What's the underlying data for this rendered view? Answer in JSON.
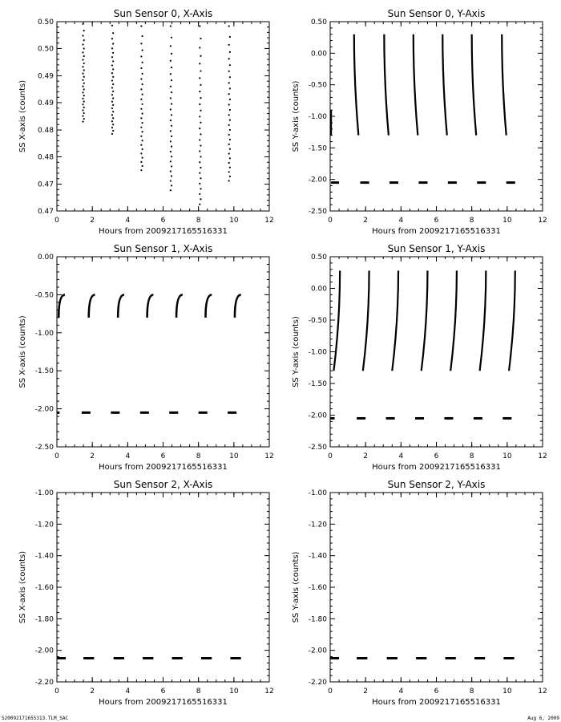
{
  "footer": {
    "left": "S20092171655313.TLM_SAC",
    "right": "Aug  6, 2009"
  },
  "colors": {
    "ink": "#000000",
    "background": "#ffffff"
  },
  "chart_data": [
    {
      "type": "scatter",
      "title": "Sun Sensor 0, X-Axis",
      "xlabel": "Hours from  2009217165516331",
      "ylabel": "SS X-axis (counts)",
      "xlim": [
        0,
        12
      ],
      "ylim": [
        0.4668,
        0.5007
      ],
      "xticks": [
        0,
        2,
        4,
        6,
        8,
        10,
        12
      ],
      "yticks": [
        0.4693,
        0.4741,
        0.4789,
        0.4837,
        0.4886,
        0.4934,
        0.4982
      ],
      "ytick_labels": [
        "0.47",
        "0.47",
        "0.48",
        "0.48",
        "0.49",
        "0.49",
        "0.50",
        "0.50"
      ],
      "ytick_values": [
        0.4668,
        0.4716,
        0.4765,
        0.4813,
        0.4862,
        0.491,
        0.4959,
        0.5007
      ],
      "series": [
        {
          "style": "dots",
          "segments": [
            {
              "x0": 1.5,
              "x1": 1.5,
              "y0": 0.5003,
              "y1": 0.4828
            },
            {
              "x0": 3.15,
              "x1": 3.15,
              "y0": 0.5,
              "y1": 0.4806
            },
            {
              "x0": 4.8,
              "x1": 4.8,
              "y0": 0.4999,
              "y1": 0.4741
            },
            {
              "x0": 6.45,
              "x1": 6.45,
              "y0": 0.4999,
              "y1": 0.4705
            },
            {
              "x0": 8.1,
              "x1": 8.1,
              "y0": 0.4999,
              "y1": 0.468
            },
            {
              "x0": 9.75,
              "x1": 9.75,
              "y0": 0.4999,
              "y1": 0.4722
            }
          ]
        }
      ]
    },
    {
      "type": "scatter",
      "title": "Sun Sensor 0, Y-Axis",
      "xlabel": "Hours from  2009217165516331",
      "ylabel": "SS Y-axis (counts)",
      "xlim": [
        0,
        12
      ],
      "ylim": [
        -2.5,
        0.5
      ],
      "xticks": [
        0,
        2,
        4,
        6,
        8,
        10,
        12
      ],
      "ytick_values": [
        -2.5,
        -2.0,
        -1.5,
        -1.0,
        -0.5,
        0.0,
        0.5
      ],
      "ytick_labels": [
        "-2.50",
        "-2.00",
        "-1.50",
        "-1.00",
        "-0.50",
        "0.00",
        "0.50"
      ],
      "series": [
        {
          "style": "curves",
          "segments": [
            {
              "x0": 0.05,
              "x1": 0.05,
              "y0": -0.9,
              "y1": -1.3
            },
            {
              "x0": 1.35,
              "x1": 1.6,
              "y0": 0.3,
              "y1": -1.3
            },
            {
              "x0": 3.05,
              "x1": 3.3,
              "y0": 0.3,
              "y1": -1.3
            },
            {
              "x0": 4.7,
              "x1": 4.95,
              "y0": 0.3,
              "y1": -1.3
            },
            {
              "x0": 6.35,
              "x1": 6.6,
              "y0": 0.3,
              "y1": -1.3
            },
            {
              "x0": 8.0,
              "x1": 8.25,
              "y0": 0.3,
              "y1": -1.3
            },
            {
              "x0": 9.7,
              "x1": 9.95,
              "y0": 0.3,
              "y1": -1.3
            }
          ]
        },
        {
          "style": "dashes",
          "y": -2.05,
          "segments": [
            {
              "x0": 0.05,
              "x1": 0.5
            },
            {
              "x0": 1.7,
              "x1": 2.2
            },
            {
              "x0": 3.35,
              "x1": 3.85
            },
            {
              "x0": 5.0,
              "x1": 5.5
            },
            {
              "x0": 6.65,
              "x1": 7.15
            },
            {
              "x0": 8.3,
              "x1": 8.8
            },
            {
              "x0": 9.95,
              "x1": 10.45
            }
          ]
        }
      ]
    },
    {
      "type": "scatter",
      "title": "Sun Sensor 1, X-Axis",
      "xlabel": "Hours from  2009217165516331",
      "ylabel": "SS X-axis (counts)",
      "xlim": [
        0,
        12
      ],
      "ylim": [
        -2.5,
        0.0
      ],
      "xticks": [
        0,
        2,
        4,
        6,
        8,
        10,
        12
      ],
      "ytick_values": [
        -2.5,
        -2.0,
        -1.5,
        -1.0,
        -0.5,
        0.0
      ],
      "ytick_labels": [
        "-2.50",
        "-2.00",
        "-1.50",
        "-1.00",
        "-0.50",
        "0.00"
      ],
      "series": [
        {
          "style": "hooks",
          "segments": [
            {
              "x0": 0.1,
              "x1": 0.45,
              "y0": -0.8,
              "y1": -0.5
            },
            {
              "x0": 1.8,
              "x1": 2.15,
              "y0": -0.8,
              "y1": -0.5
            },
            {
              "x0": 3.45,
              "x1": 3.8,
              "y0": -0.8,
              "y1": -0.5
            },
            {
              "x0": 5.1,
              "x1": 5.45,
              "y0": -0.8,
              "y1": -0.5
            },
            {
              "x0": 6.75,
              "x1": 7.1,
              "y0": -0.8,
              "y1": -0.5
            },
            {
              "x0": 8.4,
              "x1": 8.75,
              "y0": -0.8,
              "y1": -0.5
            },
            {
              "x0": 10.05,
              "x1": 10.4,
              "y0": -0.8,
              "y1": -0.5
            }
          ]
        },
        {
          "style": "dashes",
          "y": -2.05,
          "segments": [
            {
              "x0": 0.0,
              "x1": 0.15
            },
            {
              "x0": 1.4,
              "x1": 1.9
            },
            {
              "x0": 3.05,
              "x1": 3.55
            },
            {
              "x0": 4.7,
              "x1": 5.2
            },
            {
              "x0": 6.35,
              "x1": 6.85
            },
            {
              "x0": 8.0,
              "x1": 8.5
            },
            {
              "x0": 9.65,
              "x1": 10.15
            }
          ]
        }
      ]
    },
    {
      "type": "scatter",
      "title": "Sun Sensor 1, Y-Axis",
      "xlabel": "Hours from  2009217165516331",
      "ylabel": "SS Y-axis (counts)",
      "xlim": [
        0,
        12
      ],
      "ylim": [
        -2.5,
        0.5
      ],
      "xticks": [
        0,
        2,
        4,
        6,
        8,
        10,
        12
      ],
      "ytick_values": [
        -2.5,
        -2.0,
        -1.5,
        -1.0,
        -0.5,
        0.0,
        0.5
      ],
      "ytick_labels": [
        "-2.50",
        "-2.00",
        "-1.50",
        "-1.00",
        "-0.50",
        "0.00",
        "0.50"
      ],
      "series": [
        {
          "style": "curves",
          "segments": [
            {
              "x0": 0.2,
              "x1": 0.55,
              "y0": -1.3,
              "y1": 0.28
            },
            {
              "x0": 1.85,
              "x1": 2.2,
              "y0": -1.3,
              "y1": 0.28
            },
            {
              "x0": 3.5,
              "x1": 3.85,
              "y0": -1.3,
              "y1": 0.28
            },
            {
              "x0": 5.15,
              "x1": 5.5,
              "y0": -1.3,
              "y1": 0.28
            },
            {
              "x0": 6.8,
              "x1": 7.15,
              "y0": -1.3,
              "y1": 0.28
            },
            {
              "x0": 8.45,
              "x1": 8.8,
              "y0": -1.3,
              "y1": 0.28
            },
            {
              "x0": 10.1,
              "x1": 10.45,
              "y0": -1.3,
              "y1": 0.28
            }
          ]
        },
        {
          "style": "dashes",
          "y": -2.05,
          "segments": [
            {
              "x0": 0.0,
              "x1": 0.25
            },
            {
              "x0": 1.5,
              "x1": 2.0
            },
            {
              "x0": 3.15,
              "x1": 3.65
            },
            {
              "x0": 4.8,
              "x1": 5.3
            },
            {
              "x0": 6.45,
              "x1": 6.95
            },
            {
              "x0": 8.1,
              "x1": 8.6
            },
            {
              "x0": 9.75,
              "x1": 10.25
            }
          ]
        }
      ]
    },
    {
      "type": "scatter",
      "title": "Sun Sensor 2, X-Axis",
      "xlabel": "Hours from  2009217165516331",
      "ylabel": "SS X-axis (counts)",
      "xlim": [
        0,
        12
      ],
      "ylim": [
        -2.2,
        -1.0
      ],
      "xticks": [
        0,
        2,
        4,
        6,
        8,
        10,
        12
      ],
      "ytick_values": [
        -2.2,
        -2.0,
        -1.8,
        -1.6,
        -1.4,
        -1.2,
        -1.0
      ],
      "ytick_labels": [
        "-2.20",
        "-2.00",
        "-1.80",
        "-1.60",
        "-1.40",
        "-1.20",
        "-1.00"
      ],
      "series": [
        {
          "style": "dashes",
          "y": -2.05,
          "segments": [
            {
              "x0": 0.0,
              "x1": 0.5
            },
            {
              "x0": 1.5,
              "x1": 2.1
            },
            {
              "x0": 3.2,
              "x1": 3.8
            },
            {
              "x0": 4.85,
              "x1": 5.45
            },
            {
              "x0": 6.5,
              "x1": 7.1
            },
            {
              "x0": 8.15,
              "x1": 8.75
            },
            {
              "x0": 9.8,
              "x1": 10.4
            }
          ]
        }
      ]
    },
    {
      "type": "scatter",
      "title": "Sun Sensor 2, Y-Axis",
      "xlabel": "Hours from  2009217165516331",
      "ylabel": "SS Y-axis (counts)",
      "xlim": [
        0,
        12
      ],
      "ylim": [
        -2.2,
        -1.0
      ],
      "xticks": [
        0,
        2,
        4,
        6,
        8,
        10,
        12
      ],
      "ytick_values": [
        -2.2,
        -2.0,
        -1.8,
        -1.6,
        -1.4,
        -1.2,
        -1.0
      ],
      "ytick_labels": [
        "-2.20",
        "-2.00",
        "-1.80",
        "-1.60",
        "-1.40",
        "-1.20",
        "-1.00"
      ],
      "series": [
        {
          "style": "dashes",
          "y": -2.05,
          "segments": [
            {
              "x0": 0.0,
              "x1": 0.5
            },
            {
              "x0": 1.5,
              "x1": 2.1
            },
            {
              "x0": 3.2,
              "x1": 3.8
            },
            {
              "x0": 4.85,
              "x1": 5.45
            },
            {
              "x0": 6.5,
              "x1": 7.1
            },
            {
              "x0": 8.15,
              "x1": 8.75
            },
            {
              "x0": 9.8,
              "x1": 10.4
            }
          ]
        }
      ]
    }
  ]
}
